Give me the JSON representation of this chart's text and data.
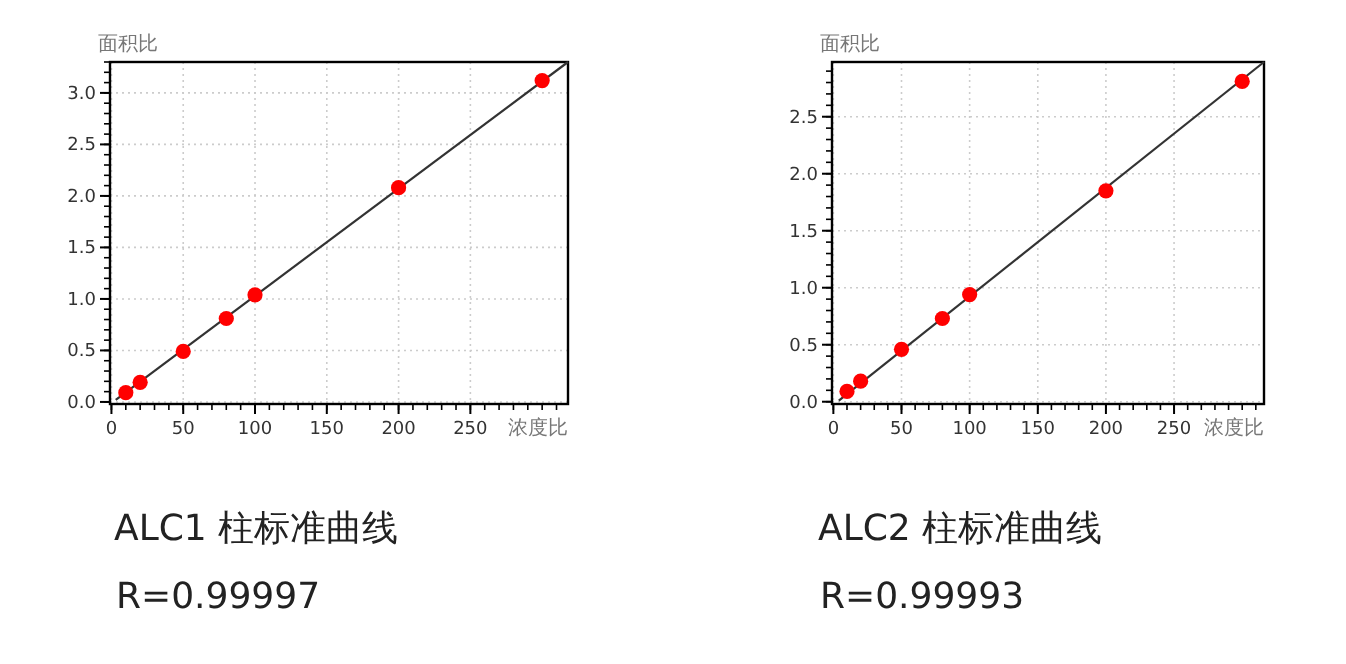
{
  "chart_data": [
    {
      "type": "scatter",
      "title": "ALC1  柱标准曲线",
      "xlabel": "浓度比",
      "ylabel": "面积比",
      "annotations": [
        "R=0.99997"
      ],
      "grid": true,
      "xlim": [
        -1,
        318
      ],
      "ylim": [
        -0.02,
        3.3
      ],
      "xticks": [
        0,
        50,
        100,
        150,
        200,
        250
      ],
      "yticks": [
        {
          "value": 0,
          "label": "0.0"
        },
        {
          "value": 0.5,
          "label": "0.5"
        },
        {
          "value": 1,
          "label": "1.0"
        },
        {
          "value": 1.5,
          "label": "1.5"
        },
        {
          "value": 2,
          "label": "2.0"
        },
        {
          "value": 2.5,
          "label": "2.5"
        },
        {
          "value": 3,
          "label": "3.0"
        }
      ],
      "series": [
        {
          "type": "line",
          "marker": "none",
          "color": "#333333",
          "x": [
            3,
            318
          ],
          "values": [
            0.02,
            3.3
          ]
        },
        {
          "marker": "circle",
          "color": "#ff0000",
          "x": [
            10,
            20,
            50,
            80,
            100,
            200,
            300
          ],
          "values": [
            0.09,
            0.19,
            0.49,
            0.81,
            1.04,
            2.08,
            3.12
          ]
        }
      ]
    },
    {
      "type": "scatter",
      "title": "ALC2 柱标准曲线",
      "xlabel": "浓度比",
      "ylabel": "面积比",
      "annotations": [
        "R=0.99993"
      ],
      "grid": true,
      "xlim": [
        -1,
        316
      ],
      "ylim": [
        -0.02,
        2.98
      ],
      "xticks": [
        0,
        50,
        100,
        150,
        200,
        250
      ],
      "yticks": [
        {
          "value": 0,
          "label": "0.0"
        },
        {
          "value": 0.5,
          "label": "0.5"
        },
        {
          "value": 1,
          "label": "1.0"
        },
        {
          "value": 1.5,
          "label": "1.5"
        },
        {
          "value": 2,
          "label": "2.0"
        },
        {
          "value": 2.5,
          "label": "2.5"
        }
      ],
      "series": [
        {
          "type": "line",
          "marker": "none",
          "color": "#333333",
          "x": [
            4,
            316
          ],
          "values": [
            0.01,
            2.98
          ]
        },
        {
          "marker": "circle",
          "color": "#ff0000",
          "x": [
            10,
            20,
            50,
            80,
            100,
            200,
            300
          ],
          "values": [
            0.09,
            0.18,
            0.46,
            0.73,
            0.94,
            1.85,
            2.81
          ]
        }
      ]
    }
  ]
}
